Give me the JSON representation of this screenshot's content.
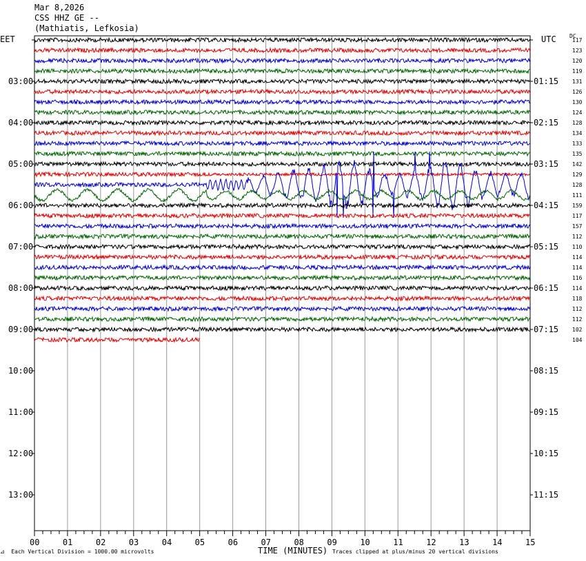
{
  "header": {
    "date": "Mar 8,2026",
    "station": "CSS HHZ GE --",
    "location": "(Mathiatis, Lefkosia)"
  },
  "left_tz": "EET",
  "right_tz": "UTC",
  "dc_label": "DC",
  "hour_labels_left": [
    "03:00",
    "04:00",
    "05:00",
    "06:00",
    "07:00",
    "08:00",
    "09:00",
    "10:00",
    "11:00",
    "12:00",
    "13:00"
  ],
  "hour_labels_right": [
    "01:15",
    "02:15",
    "03:15",
    "04:15",
    "05:15",
    "06:15",
    "07:15",
    "08:15",
    "09:15",
    "10:15",
    "11:15"
  ],
  "footer": {
    "vertical_scale": "Each Vertical Division = 1000.00 microvolts",
    "xlabel": "TIME (MINUTES)",
    "clip_note": "Traces clipped at plus/minus 20 vertical divisions"
  },
  "colors": {
    "black": "#000000",
    "red": "#e00000",
    "blue": "#0000d0",
    "green": "#006400",
    "grid": "#999999"
  },
  "chart_data": {
    "type": "line",
    "title": "CSS HHZ GE --",
    "xlabel": "TIME (MINUTES)",
    "xlim": [
      0,
      15
    ],
    "x_ticks": [
      "00",
      "01",
      "02",
      "03",
      "04",
      "05",
      "06",
      "07",
      "08",
      "09",
      "10",
      "11",
      "12",
      "13",
      "14",
      "15"
    ],
    "trace_minutes": 15,
    "trace_colors": [
      "black",
      "red",
      "blue",
      "green"
    ],
    "dc_offsets": [
      117,
      123,
      120,
      119,
      131,
      126,
      130,
      124,
      128,
      134,
      133,
      135,
      142,
      129,
      128,
      111,
      159,
      117,
      157,
      112,
      110,
      114,
      114,
      116,
      114,
      118,
      112,
      112,
      102,
      104
    ],
    "last_trace_end_minute": 5,
    "event": {
      "description": "large earthquake signal",
      "traces": [
        13,
        14,
        15
      ],
      "start_minute": 5.2,
      "end_minute": 15
    }
  }
}
